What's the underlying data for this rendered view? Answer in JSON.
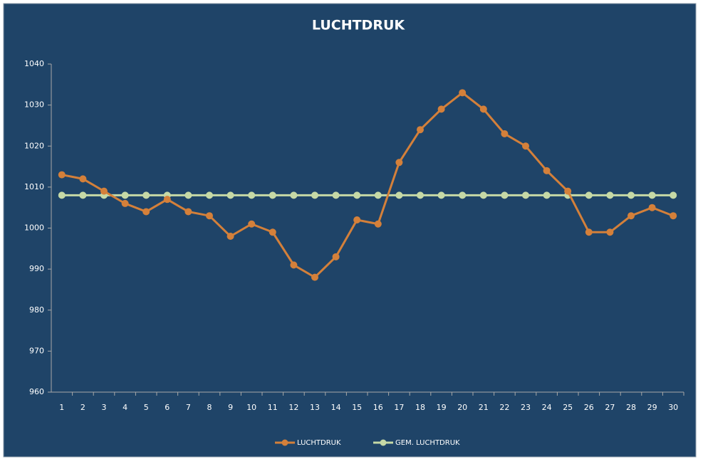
{
  "chart_data": {
    "type": "line",
    "title": "LUCHTDRUK",
    "categories": [
      "1",
      "2",
      "3",
      "4",
      "5",
      "6",
      "7",
      "8",
      "9",
      "10",
      "11",
      "12",
      "13",
      "14",
      "15",
      "16",
      "17",
      "18",
      "19",
      "20",
      "21",
      "22",
      "23",
      "24",
      "25",
      "26",
      "27",
      "28",
      "29",
      "30"
    ],
    "series": [
      {
        "name": "LUCHTDRUK",
        "color": "#d4803a",
        "values": [
          1013,
          1012,
          1009,
          1006,
          1004,
          1007,
          1004,
          1003,
          998,
          1001,
          999,
          991,
          988,
          993,
          1002,
          1001,
          1016,
          1024,
          1029,
          1033,
          1029,
          1023,
          1020,
          1014,
          1009,
          999,
          999,
          1003,
          1005,
          1003
        ]
      },
      {
        "name": "GEM. LUCHTDRUK",
        "color": "#c6d9a6",
        "values": [
          1008,
          1008,
          1008,
          1008,
          1008,
          1008,
          1008,
          1008,
          1008,
          1008,
          1008,
          1008,
          1008,
          1008,
          1008,
          1008,
          1008,
          1008,
          1008,
          1008,
          1008,
          1008,
          1008,
          1008,
          1008,
          1008,
          1008,
          1008,
          1008,
          1008
        ]
      }
    ],
    "ylim": [
      960,
      1040
    ],
    "yticks": [
      960,
      970,
      980,
      990,
      1000,
      1010,
      1020,
      1030,
      1040
    ],
    "legend": "bottom"
  }
}
